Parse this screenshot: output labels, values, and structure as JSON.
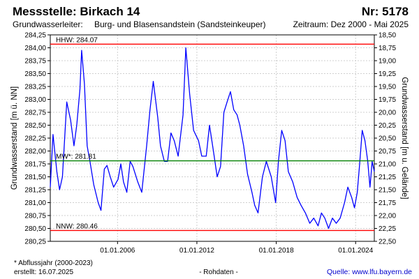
{
  "header": {
    "title": "Messstelle: Birkach 14",
    "number": "Nr: 5178",
    "aquifer_label": "Grundwasserleiter:",
    "aquifer_value": "Burg- und Blasensandstein (Sandsteinkeuper)",
    "period": "Zeitraum: Dez 2000 - Mai 2025"
  },
  "footer": {
    "note": "* Abflussjahr (2000-2023)",
    "created": "erstellt:  16.07.2025",
    "rawdata": "- Rohdaten -",
    "source": "Quelle: www.lfu.bayern.de"
  },
  "chart_data": {
    "type": "line",
    "ylabel": "Grundwasserstand [m ü. NN]",
    "y2label": "Grundwasserstand [m u. Gelände]",
    "ylim": [
      280.25,
      284.25
    ],
    "y_ticks": [
      "280,25",
      "280,50",
      "280,75",
      "281,00",
      "281,25",
      "281,50",
      "281,75",
      "282,00",
      "282,25",
      "282,50",
      "282,75",
      "283,00",
      "283,25",
      "283,50",
      "283,75",
      "284,00",
      "284,25"
    ],
    "y2_ticks": [
      "22,50",
      "22,25",
      "22,00",
      "21,75",
      "21,50",
      "21,25",
      "21,00",
      "20,75",
      "20,50",
      "20,25",
      "20,00",
      "19,75",
      "19,50",
      "19,25",
      "19,00",
      "18,75",
      "18,50"
    ],
    "xlim": [
      "2000-12-01",
      "2025-05-31"
    ],
    "x_ticks": [
      "2006-01-01",
      "2012-01-01",
      "2018-01-01",
      "2024-01-01"
    ],
    "x_tick_labels": [
      "01.01.2006",
      "01.01.2012",
      "01.01.2018",
      "01.01.2024"
    ],
    "grid": true,
    "colors": {
      "series": "#0000ff",
      "hhw": "#ff0000",
      "nnw": "#ff0000",
      "mw": "#008000"
    },
    "reference_lines": [
      {
        "label": "HHW: 284.07",
        "value": 284.07,
        "color": "#ff0000"
      },
      {
        "label": "MW*: 281.81",
        "value": 281.81,
        "color": "#008000"
      },
      {
        "label": "NNW: 280.46",
        "value": 280.46,
        "color": "#ff0000"
      }
    ],
    "series": [
      {
        "x": [
          "2000-12-01",
          "2001-02-15",
          "2001-06-01",
          "2001-08-15",
          "2001-11-01",
          "2002-03-01",
          "2002-06-15",
          "2002-09-15",
          "2002-12-01",
          "2003-03-01",
          "2003-04-15",
          "2003-07-01",
          "2003-09-15",
          "2003-12-01",
          "2004-03-15",
          "2004-07-15",
          "2004-10-01",
          "2005-01-01",
          "2005-03-15",
          "2005-06-15",
          "2005-09-15",
          "2006-01-15",
          "2006-04-01",
          "2006-06-15",
          "2006-09-15",
          "2006-12-15",
          "2007-03-01",
          "2007-07-15",
          "2007-11-01",
          "2008-03-15",
          "2008-06-15",
          "2008-09-15",
          "2009-01-15",
          "2009-04-01",
          "2009-07-15",
          "2009-10-15",
          "2010-01-15",
          "2010-04-15",
          "2010-08-01",
          "2010-12-15",
          "2011-03-01",
          "2011-06-15",
          "2011-10-01",
          "2012-02-15",
          "2012-05-15",
          "2012-09-15",
          "2012-12-15",
          "2013-04-01",
          "2013-07-15",
          "2013-10-15",
          "2014-01-15",
          "2014-04-15",
          "2014-07-15",
          "2014-10-15",
          "2015-01-15",
          "2015-04-01",
          "2015-07-15",
          "2015-11-01",
          "2016-03-01",
          "2016-05-15",
          "2016-08-15",
          "2016-12-15",
          "2017-04-01",
          "2017-08-15",
          "2017-12-15",
          "2018-03-01",
          "2018-06-01",
          "2018-09-01",
          "2018-12-01",
          "2019-04-01",
          "2019-08-01",
          "2019-11-15",
          "2020-03-15",
          "2020-07-15",
          "2020-11-01",
          "2021-03-01",
          "2021-06-01",
          "2021-09-01",
          "2021-12-15",
          "2022-04-01",
          "2022-07-15",
          "2022-11-01",
          "2023-03-01",
          "2023-06-01",
          "2023-09-15",
          "2023-12-01",
          "2024-02-15",
          "2024-04-15",
          "2024-07-01",
          "2024-09-15",
          "2024-12-01",
          "2025-02-01",
          "2025-04-01",
          "2025-05-31"
        ],
        "y": [
          281.3,
          282.32,
          281.6,
          281.25,
          281.5,
          282.95,
          282.6,
          282.1,
          282.5,
          283.2,
          283.95,
          283.3,
          282.1,
          281.8,
          281.35,
          281.0,
          280.85,
          281.65,
          281.72,
          281.5,
          281.3,
          281.45,
          281.75,
          281.4,
          281.2,
          281.8,
          281.7,
          281.4,
          281.2,
          282.1,
          282.8,
          283.35,
          282.65,
          282.1,
          281.8,
          281.8,
          282.35,
          282.2,
          281.9,
          282.7,
          284.0,
          283.1,
          282.4,
          282.2,
          281.9,
          281.9,
          282.5,
          282.0,
          281.5,
          281.7,
          282.75,
          282.95,
          283.15,
          282.8,
          282.7,
          282.5,
          282.1,
          281.55,
          281.2,
          280.95,
          280.8,
          281.5,
          281.8,
          281.5,
          281.0,
          281.8,
          282.4,
          282.2,
          281.6,
          281.4,
          281.1,
          280.95,
          280.8,
          280.6,
          280.7,
          280.55,
          280.8,
          280.7,
          280.5,
          280.7,
          280.6,
          280.7,
          281.0,
          281.3,
          281.1,
          280.9,
          281.2,
          281.7,
          282.4,
          282.2,
          281.8,
          281.3,
          281.8,
          281.6
        ]
      }
    ]
  }
}
